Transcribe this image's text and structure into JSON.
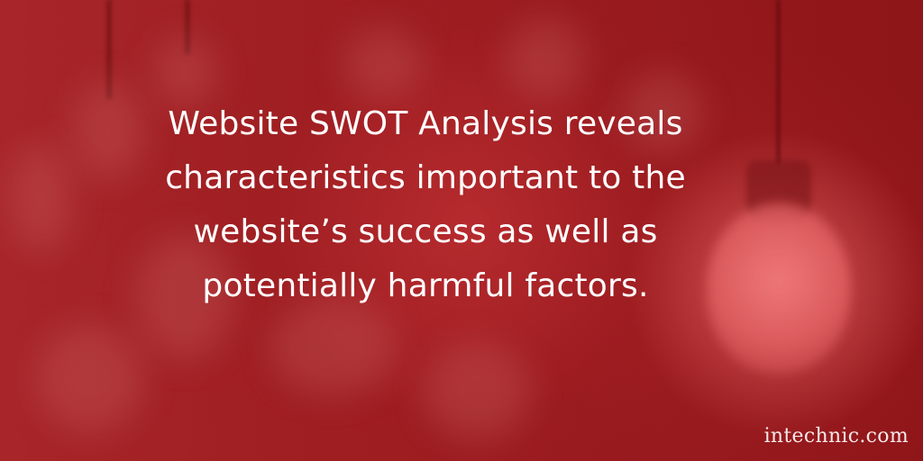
{
  "headline": "Website SWOT Analysis reveals\ncharacteristics important to the\nwebsite’s success as well as\npotentially harmful factors.",
  "watermark": "intechnic.com",
  "colors": {
    "background": "#9d1e22",
    "bulb_glow": "#e06062",
    "text": "#ffffff"
  },
  "background_motif": "blurred-hanging-light-bulbs"
}
